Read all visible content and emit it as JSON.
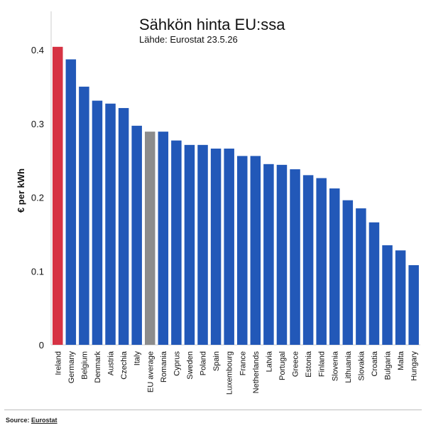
{
  "chart_data": {
    "type": "bar",
    "title": "Sähkön hinta EU:ssa",
    "subtitle": "Lähde: Eurostat 23.5.26",
    "xlabel": "",
    "ylabel": "€ per kWh",
    "ylim": [
      0,
      0.42
    ],
    "yticks": [
      0,
      0.1,
      0.2,
      0.3,
      0.4
    ],
    "ytick_labels": [
      "0",
      "0.1",
      "0.2",
      "0.3",
      "0.4"
    ],
    "grid": false,
    "categories": [
      "Ireland",
      "Germany",
      "Belgium",
      "Denmark",
      "Austria",
      "Czechia",
      "Italy",
      "EU average",
      "Romania",
      "Cyprus",
      "Sweden",
      "Poland",
      "Spain",
      "Luxembourg",
      "France",
      "Netherlands",
      "Latvia",
      "Portugal",
      "Greece",
      "Estonia",
      "Finland",
      "Slovenia",
      "Lithuania",
      "Slovakia",
      "Croatia",
      "Bulgaria",
      "Malta",
      "Hungary"
    ],
    "values": [
      0.404,
      0.387,
      0.35,
      0.331,
      0.327,
      0.321,
      0.297,
      0.289,
      0.289,
      0.277,
      0.271,
      0.271,
      0.266,
      0.266,
      0.256,
      0.256,
      0.245,
      0.244,
      0.238,
      0.23,
      0.226,
      0.212,
      0.196,
      0.185,
      0.166,
      0.135,
      0.128,
      0.108
    ],
    "bar_colors": {
      "default": "#2258b8",
      "highlight": "#d63344",
      "average": "#8c8c8c"
    },
    "highlight_index": 0,
    "average_index": 7
  },
  "footer": {
    "source_prefix": "Source: ",
    "source_name": "Eurostat"
  }
}
